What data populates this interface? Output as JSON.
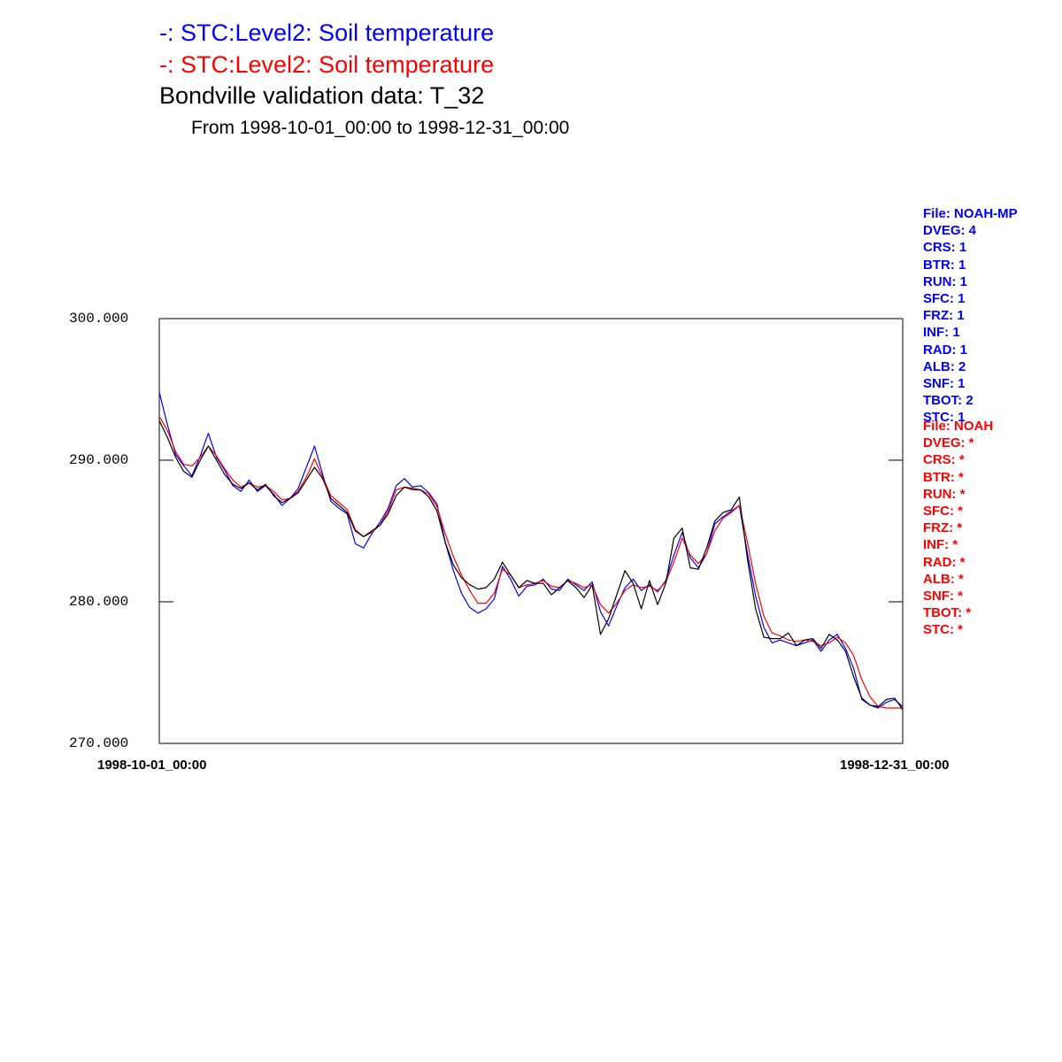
{
  "header": {
    "legend_blue": "-:  STC:Level2: Soil temperature",
    "legend_red": "-:  STC:Level2: Soil temperature",
    "title": "Bondville validation data:  T_32",
    "subtitle": "From 1998-10-01_00:00 to 1998-12-31_00:00"
  },
  "colors": {
    "blue": "#0000ff",
    "red": "#ff0000",
    "black": "#000000"
  },
  "info_blue": [
    "File: NOAH-MP",
    "DVEG: 4",
    "CRS: 1",
    "BTR: 1",
    "RUN: 1",
    "SFC: 1",
    "FRZ: 1",
    "INF: 1",
    "RAD: 1",
    "ALB: 2",
    "SNF: 1",
    "TBOT: 2",
    "STC: 1"
  ],
  "info_red": [
    "File: NOAH",
    "DVEG: *",
    "CRS: *",
    "BTR: *",
    "RUN: *",
    "SFC: *",
    "FRZ: *",
    "INF: *",
    "RAD: *",
    "ALB: *",
    "SNF: *",
    "TBOT: *",
    "STC: *"
  ],
  "chart_data": {
    "type": "line",
    "title": "Bondville validation data:  T_32",
    "subtitle": "From 1998-10-01_00:00 to 1998-12-31_00:00",
    "x_start": "1998-10-01_00:00",
    "x_end": "1998-12-31_00:00",
    "xlim": [
      "1998-10-01",
      "1998-12-31"
    ],
    "ylim": [
      270,
      300
    ],
    "y_ticks": [
      "300.000",
      "290.000",
      "280.000",
      "270.000"
    ],
    "grid": false,
    "series": [
      {
        "name": "STC:Level2: Soil temperature",
        "color": "#0000ff",
        "x": [
          "1998-10-01",
          "1998-10-02",
          "1998-10-03",
          "1998-10-04",
          "1998-10-05",
          "1998-10-06",
          "1998-10-07",
          "1998-10-08",
          "1998-10-09",
          "1998-10-10",
          "1998-10-11",
          "1998-10-12",
          "1998-10-13",
          "1998-10-14",
          "1998-10-15",
          "1998-10-16",
          "1998-10-17",
          "1998-10-18",
          "1998-10-19",
          "1998-10-20",
          "1998-10-21",
          "1998-10-22",
          "1998-10-23",
          "1998-10-24",
          "1998-10-25",
          "1998-10-26",
          "1998-10-27",
          "1998-10-28",
          "1998-10-29",
          "1998-10-30",
          "1998-10-31",
          "1998-11-01",
          "1998-11-02",
          "1998-11-03",
          "1998-11-04",
          "1998-11-05",
          "1998-11-06",
          "1998-11-07",
          "1998-11-08",
          "1998-11-09",
          "1998-11-10",
          "1998-11-11",
          "1998-11-12",
          "1998-11-13",
          "1998-11-14",
          "1998-11-15",
          "1998-11-16",
          "1998-11-17",
          "1998-11-18",
          "1998-11-19",
          "1998-11-20",
          "1998-11-21",
          "1998-11-22",
          "1998-11-23",
          "1998-11-24",
          "1998-11-25",
          "1998-11-26",
          "1998-11-27",
          "1998-11-28",
          "1998-11-29",
          "1998-11-30",
          "1998-12-01",
          "1998-12-02",
          "1998-12-03",
          "1998-12-04",
          "1998-12-05",
          "1998-12-06",
          "1998-12-07",
          "1998-12-08",
          "1998-12-09",
          "1998-12-10",
          "1998-12-11",
          "1998-12-12",
          "1998-12-13",
          "1998-12-14",
          "1998-12-15",
          "1998-12-16",
          "1998-12-17",
          "1998-12-18",
          "1998-12-19",
          "1998-12-20",
          "1998-12-21",
          "1998-12-22",
          "1998-12-23",
          "1998-12-24",
          "1998-12-25",
          "1998-12-26",
          "1998-12-27",
          "1998-12-28",
          "1998-12-29",
          "1998-12-30",
          "1998-12-31"
        ],
        "y": [
          294.8,
          292.5,
          290.4,
          289.6,
          288.9,
          290.3,
          291.9,
          290.2,
          289.3,
          288.2,
          287.8,
          288.6,
          287.8,
          288.2,
          287.6,
          286.8,
          287.3,
          288.0,
          289.5,
          291.0,
          289.0,
          287.1,
          286.6,
          286.2,
          284.1,
          283.8,
          284.8,
          285.6,
          286.6,
          288.2,
          288.7,
          288.1,
          288.2,
          287.7,
          286.9,
          284.2,
          282.2,
          280.6,
          279.6,
          279.2,
          279.5,
          280.2,
          282.5,
          281.6,
          280.4,
          281.1,
          281.2,
          281.6,
          280.9,
          280.8,
          281.6,
          281.2,
          280.8,
          281.4,
          279.3,
          278.3,
          279.7,
          281.0,
          281.6,
          280.8,
          281.2,
          280.7,
          281.5,
          283.3,
          284.9,
          283.1,
          282.4,
          283.4,
          285.5,
          286.0,
          286.4,
          286.8,
          283.4,
          280.4,
          278.2,
          277.1,
          277.3,
          277.1,
          276.9,
          277.1,
          277.3,
          276.5,
          277.3,
          277.7,
          276.7,
          275.3,
          273.1,
          272.7,
          272.5,
          272.9,
          273.1,
          272.6
        ]
      },
      {
        "name": "STC:Level2: Soil temperature",
        "color": "#ff0000",
        "x": [
          "1998-10-01",
          "1998-10-02",
          "1998-10-03",
          "1998-10-04",
          "1998-10-05",
          "1998-10-06",
          "1998-10-07",
          "1998-10-08",
          "1998-10-09",
          "1998-10-10",
          "1998-10-11",
          "1998-10-12",
          "1998-10-13",
          "1998-10-14",
          "1998-10-15",
          "1998-10-16",
          "1998-10-17",
          "1998-10-18",
          "1998-10-19",
          "1998-10-20",
          "1998-10-21",
          "1998-10-22",
          "1998-10-23",
          "1998-10-24",
          "1998-10-25",
          "1998-10-26",
          "1998-10-27",
          "1998-10-28",
          "1998-10-29",
          "1998-10-30",
          "1998-10-31",
          "1998-11-01",
          "1998-11-02",
          "1998-11-03",
          "1998-11-04",
          "1998-11-05",
          "1998-11-06",
          "1998-11-07",
          "1998-11-08",
          "1998-11-09",
          "1998-11-10",
          "1998-11-11",
          "1998-11-12",
          "1998-11-13",
          "1998-11-14",
          "1998-11-15",
          "1998-11-16",
          "1998-11-17",
          "1998-11-18",
          "1998-11-19",
          "1998-11-20",
          "1998-11-21",
          "1998-11-22",
          "1998-11-23",
          "1998-11-24",
          "1998-11-25",
          "1998-11-26",
          "1998-11-27",
          "1998-11-28",
          "1998-11-29",
          "1998-11-30",
          "1998-12-01",
          "1998-12-02",
          "1998-12-03",
          "1998-12-04",
          "1998-12-05",
          "1998-12-06",
          "1998-12-07",
          "1998-12-08",
          "1998-12-09",
          "1998-12-10",
          "1998-12-11",
          "1998-12-12",
          "1998-12-13",
          "1998-12-14",
          "1998-12-15",
          "1998-12-16",
          "1998-12-17",
          "1998-12-18",
          "1998-12-19",
          "1998-12-20",
          "1998-12-21",
          "1998-12-22",
          "1998-12-23",
          "1998-12-24",
          "1998-12-25",
          "1998-12-26",
          "1998-12-27",
          "1998-12-28",
          "1998-12-29",
          "1998-12-30",
          "1998-12-31"
        ],
        "y": [
          293.1,
          292.1,
          290.6,
          289.7,
          289.6,
          290.2,
          291.0,
          290.3,
          289.4,
          288.6,
          288.1,
          288.4,
          288.1,
          288.2,
          287.8,
          287.2,
          287.3,
          287.8,
          288.8,
          290.1,
          288.8,
          287.5,
          287.0,
          286.5,
          285.1,
          284.6,
          284.9,
          285.4,
          286.4,
          287.9,
          288.1,
          287.9,
          287.9,
          287.6,
          286.7,
          284.8,
          283.2,
          281.9,
          280.8,
          279.9,
          279.9,
          280.6,
          282.3,
          281.9,
          281.0,
          281.2,
          281.3,
          281.5,
          281.1,
          281.0,
          281.5,
          281.3,
          281.0,
          281.2,
          279.8,
          279.2,
          279.9,
          280.8,
          281.2,
          281.0,
          281.1,
          280.8,
          281.4,
          282.8,
          284.5,
          283.3,
          282.7,
          283.4,
          285.0,
          285.9,
          286.3,
          286.8,
          284.2,
          281.3,
          279.0,
          277.8,
          277.6,
          277.3,
          277.2,
          277.3,
          277.2,
          276.9,
          277.1,
          277.5,
          277.1,
          276.2,
          274.5,
          273.3,
          272.6,
          272.5,
          272.5,
          272.5
        ]
      },
      {
        "name": "Bondville validation data:  T_32",
        "color": "#000000",
        "x": [
          "1998-10-01",
          "1998-10-02",
          "1998-10-03",
          "1998-10-04",
          "1998-10-05",
          "1998-10-06",
          "1998-10-07",
          "1998-10-08",
          "1998-10-09",
          "1998-10-10",
          "1998-10-11",
          "1998-10-12",
          "1998-10-13",
          "1998-10-14",
          "1998-10-15",
          "1998-10-16",
          "1998-10-17",
          "1998-10-18",
          "1998-10-19",
          "1998-10-20",
          "1998-10-21",
          "1998-10-22",
          "1998-10-23",
          "1998-10-24",
          "1998-10-25",
          "1998-10-26",
          "1998-10-27",
          "1998-10-28",
          "1998-10-29",
          "1998-10-30",
          "1998-10-31",
          "1998-11-01",
          "1998-11-02",
          "1998-11-03",
          "1998-11-04",
          "1998-11-05",
          "1998-11-06",
          "1998-11-07",
          "1998-11-08",
          "1998-11-09",
          "1998-11-10",
          "1998-11-11",
          "1998-11-12",
          "1998-11-13",
          "1998-11-14",
          "1998-11-15",
          "1998-11-16",
          "1998-11-17",
          "1998-11-18",
          "1998-11-19",
          "1998-11-20",
          "1998-11-21",
          "1998-11-22",
          "1998-11-23",
          "1998-11-24",
          "1998-11-25",
          "1998-11-26",
          "1998-11-27",
          "1998-11-28",
          "1998-11-29",
          "1998-11-30",
          "1998-12-01",
          "1998-12-02",
          "1998-12-03",
          "1998-12-04",
          "1998-12-05",
          "1998-12-06",
          "1998-12-07",
          "1998-12-08",
          "1998-12-09",
          "1998-12-10",
          "1998-12-11",
          "1998-12-12",
          "1998-12-13",
          "1998-12-14",
          "1998-12-15",
          "1998-12-16",
          "1998-12-17",
          "1998-12-18",
          "1998-12-19",
          "1998-12-20",
          "1998-12-21",
          "1998-12-22",
          "1998-12-23",
          "1998-12-24",
          "1998-12-25",
          "1998-12-26",
          "1998-12-27",
          "1998-12-28",
          "1998-12-29",
          "1998-12-30",
          "1998-12-31"
        ],
        "y": [
          292.8,
          291.6,
          290.2,
          289.2,
          288.8,
          290.0,
          291.0,
          290.0,
          289.0,
          288.3,
          288.0,
          288.4,
          287.9,
          288.3,
          287.5,
          287.0,
          287.3,
          287.7,
          288.6,
          289.5,
          288.7,
          287.3,
          286.8,
          286.3,
          285.0,
          284.6,
          285.0,
          285.4,
          286.2,
          287.5,
          288.1,
          288.0,
          287.9,
          287.4,
          286.4,
          284.2,
          282.6,
          281.7,
          281.2,
          280.9,
          281.0,
          281.6,
          282.8,
          281.9,
          281.0,
          281.5,
          281.3,
          281.3,
          280.5,
          281.0,
          281.5,
          281.0,
          280.3,
          281.2,
          277.7,
          278.8,
          280.5,
          282.2,
          281.3,
          279.5,
          281.5,
          279.8,
          281.3,
          284.5,
          285.2,
          282.4,
          282.3,
          283.8,
          285.7,
          286.3,
          286.5,
          287.4,
          283.0,
          279.5,
          277.5,
          277.4,
          277.4,
          277.8,
          276.9,
          277.3,
          277.4,
          276.7,
          277.7,
          277.3,
          276.5,
          274.7,
          273.2,
          272.7,
          272.6,
          273.1,
          273.2,
          272.4
        ]
      }
    ]
  }
}
